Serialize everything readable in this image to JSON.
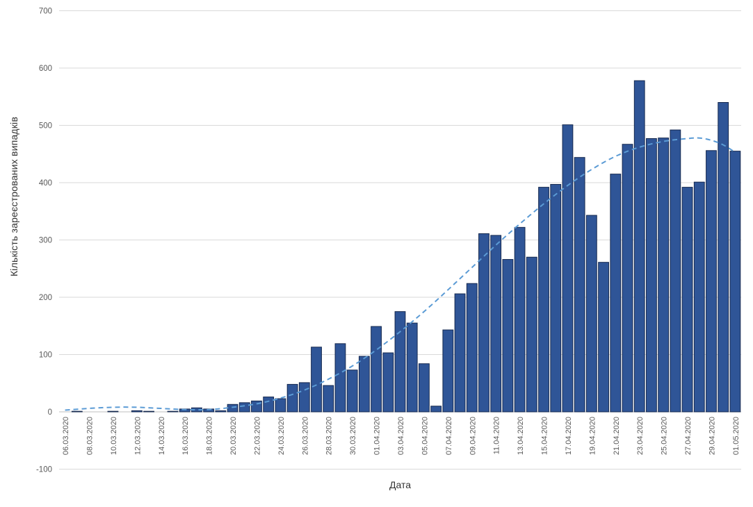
{
  "page": {
    "background": "#FFFFFF"
  },
  "chart_data": {
    "type": "bar",
    "title": "",
    "xlabel": "Дата",
    "ylabel": "Кількість зареєстрованих випадків",
    "ylim": [
      -100,
      700
    ],
    "y_ticks": [
      700,
      600,
      500,
      400,
      300,
      200,
      100,
      0,
      -100
    ],
    "x_tick_every": 2,
    "grid": true,
    "legend_position": "none",
    "bar_fill": "#2F5597",
    "bar_stroke": "#16294F",
    "gridline_color": "#D9D9D9",
    "axis_line_color": "#BFBFBF",
    "tick_label_color": "#595959",
    "categories": [
      "06.03.2020",
      "07.03.2020",
      "08.03.2020",
      "09.03.2020",
      "10.03.2020",
      "11.03.2020",
      "12.03.2020",
      "13.03.2020",
      "14.03.2020",
      "15.03.2020",
      "16.03.2020",
      "17.03.2020",
      "18.03.2020",
      "19.03.2020",
      "20.03.2020",
      "21.03.2020",
      "22.03.2020",
      "23.03.2020",
      "24.03.2020",
      "25.03.2020",
      "26.03.2020",
      "27.03.2020",
      "28.03.2020",
      "29.03.2020",
      "30.03.2020",
      "31.03.2020",
      "01.04.2020",
      "02.04.2020",
      "03.04.2020",
      "04.04.2020",
      "05.04.2020",
      "06.04.2020",
      "07.04.2020",
      "08.04.2020",
      "09.04.2020",
      "10.04.2020",
      "11.04.2020",
      "12.04.2020",
      "13.04.2020",
      "14.04.2020",
      "15.04.2020",
      "16.04.2020",
      "17.04.2020",
      "18.04.2020",
      "19.04.2020",
      "20.04.2020",
      "21.04.2020",
      "22.04.2020",
      "23.04.2020",
      "24.04.2020",
      "25.04.2020",
      "26.04.2020",
      "27.04.2020",
      "28.04.2020",
      "29.04.2020",
      "30.04.2020",
      "01.05.2020"
    ],
    "values": [
      0,
      1,
      0,
      0,
      1,
      0,
      2,
      1,
      0,
      1,
      5,
      7,
      5,
      2,
      13,
      16,
      19,
      26,
      23,
      48,
      51,
      113,
      46,
      119,
      73,
      97,
      149,
      103,
      175,
      155,
      84,
      10,
      143,
      206,
      224,
      311,
      308,
      266,
      322,
      270,
      392,
      397,
      501,
      444,
      343,
      261,
      415,
      467,
      578,
      477,
      478,
      492,
      392,
      401,
      456,
      540,
      455
    ],
    "trendline": {
      "type": "polynomial",
      "style": "dashed",
      "color": "#5B9BD5",
      "points": [
        [
          0,
          3
        ],
        [
          2,
          6
        ],
        [
          4,
          8
        ],
        [
          6,
          8
        ],
        [
          8,
          6
        ],
        [
          10,
          4
        ],
        [
          12,
          4
        ],
        [
          14,
          8
        ],
        [
          16,
          14
        ],
        [
          18,
          24
        ],
        [
          20,
          38
        ],
        [
          22,
          57
        ],
        [
          24,
          80
        ],
        [
          26,
          108
        ],
        [
          28,
          140
        ],
        [
          30,
          175
        ],
        [
          32,
          213
        ],
        [
          34,
          252
        ],
        [
          36,
          291
        ],
        [
          38,
          328
        ],
        [
          40,
          363
        ],
        [
          42,
          395
        ],
        [
          44,
          423
        ],
        [
          46,
          446
        ],
        [
          48,
          462
        ],
        [
          50,
          472
        ],
        [
          52,
          477
        ],
        [
          53,
          478
        ],
        [
          54,
          474
        ],
        [
          55,
          466
        ],
        [
          56,
          453
        ]
      ]
    }
  }
}
